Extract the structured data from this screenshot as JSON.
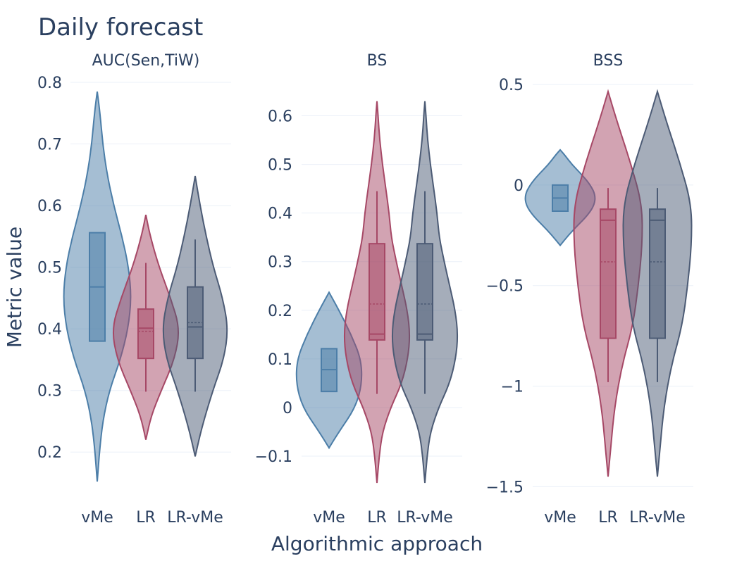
{
  "title": "Daily forecast",
  "xlabel": "Algorithmic approach",
  "ylabel": "Metric value",
  "colors": {
    "vMe": "#4c7ea8",
    "LR": "#a64866",
    "LR-vMe": "#4c5b75"
  },
  "chart_data": [
    {
      "type": "violin",
      "subtitle": "AUC(Sen,TiW)",
      "categories": [
        "vMe",
        "LR",
        "LR-vMe"
      ],
      "ylim": [
        0.15,
        0.8
      ],
      "yticks": [
        0.2,
        0.3,
        0.4,
        0.5,
        0.6,
        0.7,
        0.8
      ],
      "ytick_labels": [
        "0.2",
        "0.3",
        "0.4",
        "0.5",
        "0.6",
        "0.7",
        "0.8"
      ],
      "series": [
        {
          "name": "vMe",
          "min": 0.152,
          "max": 0.785,
          "q1": 0.38,
          "median": 0.468,
          "q3": 0.556,
          "mean": null,
          "wlo": null,
          "whi": null,
          "density": [
            [
              0.152,
              0.0
            ],
            [
              0.2,
              0.04
            ],
            [
              0.25,
              0.1
            ],
            [
              0.3,
              0.22
            ],
            [
              0.35,
              0.42
            ],
            [
              0.4,
              0.56
            ],
            [
              0.45,
              0.62
            ],
            [
              0.5,
              0.57
            ],
            [
              0.55,
              0.45
            ],
            [
              0.6,
              0.3
            ],
            [
              0.65,
              0.18
            ],
            [
              0.7,
              0.1
            ],
            [
              0.75,
              0.05
            ],
            [
              0.785,
              0.0
            ]
          ]
        },
        {
          "name": "LR",
          "min": 0.22,
          "max": 0.585,
          "q1": 0.352,
          "median": 0.401,
          "q3": 0.432,
          "mean": 0.396,
          "wlo": 0.298,
          "whi": 0.507,
          "density": [
            [
              0.22,
              0.0
            ],
            [
              0.26,
              0.1
            ],
            [
              0.3,
              0.28
            ],
            [
              0.35,
              0.52
            ],
            [
              0.4,
              0.62
            ],
            [
              0.45,
              0.45
            ],
            [
              0.5,
              0.24
            ],
            [
              0.55,
              0.08
            ],
            [
              0.585,
              0.0
            ]
          ]
        },
        {
          "name": "LR-vMe",
          "min": 0.193,
          "max": 0.648,
          "q1": 0.352,
          "median": 0.403,
          "q3": 0.468,
          "mean": 0.41,
          "wlo": 0.298,
          "whi": 0.545,
          "density": [
            [
              0.193,
              0.0
            ],
            [
              0.24,
              0.12
            ],
            [
              0.3,
              0.32
            ],
            [
              0.35,
              0.52
            ],
            [
              0.4,
              0.6
            ],
            [
              0.45,
              0.5
            ],
            [
              0.5,
              0.33
            ],
            [
              0.55,
              0.2
            ],
            [
              0.6,
              0.09
            ],
            [
              0.648,
              0.0
            ]
          ]
        }
      ]
    },
    {
      "type": "violin",
      "subtitle": "BS",
      "categories": [
        "vMe",
        "LR",
        "LR-vMe"
      ],
      "ylim": [
        -0.155,
        0.65
      ],
      "yticks": [
        -0.1,
        0,
        0.1,
        0.2,
        0.3,
        0.4,
        0.5,
        0.6
      ],
      "ytick_labels": [
        "−0.1",
        "0",
        "0.1",
        "0.2",
        "0.3",
        "0.4",
        "0.5",
        "0.6"
      ],
      "series": [
        {
          "name": "vMe",
          "min": -0.083,
          "max": 0.237,
          "q1": 0.033,
          "median": 0.078,
          "q3": 0.121,
          "mean": null,
          "wlo": null,
          "whi": null,
          "density": [
            [
              -0.083,
              0.0
            ],
            [
              -0.05,
              0.18
            ],
            [
              0.0,
              0.48
            ],
            [
              0.05,
              0.6
            ],
            [
              0.1,
              0.58
            ],
            [
              0.15,
              0.4
            ],
            [
              0.2,
              0.18
            ],
            [
              0.237,
              0.0
            ]
          ]
        },
        {
          "name": "LR",
          "min": -0.155,
          "max": 0.63,
          "q1": 0.139,
          "median": 0.151,
          "q3": 0.337,
          "mean": 0.213,
          "wlo": 0.028,
          "whi": 0.445,
          "density": [
            [
              -0.155,
              0.0
            ],
            [
              -0.1,
              0.04
            ],
            [
              -0.05,
              0.1
            ],
            [
              0.0,
              0.25
            ],
            [
              0.05,
              0.45
            ],
            [
              0.1,
              0.56
            ],
            [
              0.15,
              0.6
            ],
            [
              0.2,
              0.55
            ],
            [
              0.25,
              0.45
            ],
            [
              0.3,
              0.35
            ],
            [
              0.35,
              0.26
            ],
            [
              0.4,
              0.22
            ],
            [
              0.45,
              0.16
            ],
            [
              0.5,
              0.1
            ],
            [
              0.55,
              0.05
            ],
            [
              0.6,
              0.02
            ],
            [
              0.63,
              0.0
            ]
          ]
        },
        {
          "name": "LR-vMe",
          "min": -0.155,
          "max": 0.63,
          "q1": 0.139,
          "median": 0.151,
          "q3": 0.337,
          "mean": 0.213,
          "wlo": 0.028,
          "whi": 0.445,
          "density": [
            [
              -0.155,
              0.0
            ],
            [
              -0.1,
              0.04
            ],
            [
              -0.05,
              0.1
            ],
            [
              0.0,
              0.25
            ],
            [
              0.05,
              0.45
            ],
            [
              0.1,
              0.56
            ],
            [
              0.15,
              0.6
            ],
            [
              0.2,
              0.55
            ],
            [
              0.25,
              0.45
            ],
            [
              0.3,
              0.35
            ],
            [
              0.35,
              0.26
            ],
            [
              0.4,
              0.22
            ],
            [
              0.45,
              0.16
            ],
            [
              0.5,
              0.1
            ],
            [
              0.55,
              0.05
            ],
            [
              0.6,
              0.02
            ],
            [
              0.63,
              0.0
            ]
          ]
        }
      ]
    },
    {
      "type": "violin",
      "subtitle": "BSS",
      "categories": [
        "vMe",
        "LR",
        "LR-vMe"
      ],
      "ylim": [
        -1.53,
        0.5
      ],
      "yticks": [
        -1.5,
        -1,
        -0.5,
        0,
        0.5
      ],
      "ytick_labels": [
        "−1.5",
        "−1",
        "−0.5",
        "0",
        "0.5"
      ],
      "series": [
        {
          "name": "vMe",
          "min": -0.3,
          "max": 0.175,
          "q1": -0.13,
          "median": -0.065,
          "q3": 0.0,
          "mean": null,
          "wlo": null,
          "whi": null,
          "density": [
            [
              -0.3,
              0.0
            ],
            [
              -0.25,
              0.15
            ],
            [
              -0.2,
              0.32
            ],
            [
              -0.15,
              0.5
            ],
            [
              -0.1,
              0.62
            ],
            [
              -0.05,
              0.64
            ],
            [
              0.0,
              0.55
            ],
            [
              0.05,
              0.4
            ],
            [
              0.1,
              0.22
            ],
            [
              0.15,
              0.08
            ],
            [
              0.175,
              0.0
            ]
          ]
        },
        {
          "name": "LR",
          "min": -1.45,
          "max": 0.465,
          "q1": -0.762,
          "median": -0.175,
          "q3": -0.12,
          "mean": -0.382,
          "wlo": -0.98,
          "whi": -0.015,
          "density": [
            [
              -1.45,
              0.0
            ],
            [
              -1.3,
              0.05
            ],
            [
              -1.1,
              0.12
            ],
            [
              -0.9,
              0.25
            ],
            [
              -0.7,
              0.45
            ],
            [
              -0.5,
              0.55
            ],
            [
              -0.3,
              0.62
            ],
            [
              -0.1,
              0.62
            ],
            [
              0.1,
              0.42
            ],
            [
              0.3,
              0.18
            ],
            [
              0.465,
              0.0
            ]
          ]
        },
        {
          "name": "LR-vMe",
          "min": -1.45,
          "max": 0.465,
          "q1": -0.762,
          "median": -0.175,
          "q3": -0.12,
          "mean": -0.382,
          "wlo": -0.98,
          "whi": -0.015,
          "density": [
            [
              -1.45,
              0.0
            ],
            [
              -1.3,
              0.05
            ],
            [
              -1.1,
              0.12
            ],
            [
              -0.9,
              0.25
            ],
            [
              -0.7,
              0.45
            ],
            [
              -0.5,
              0.55
            ],
            [
              -0.3,
              0.62
            ],
            [
              -0.1,
              0.62
            ],
            [
              0.1,
              0.42
            ],
            [
              0.3,
              0.18
            ],
            [
              0.465,
              0.0
            ]
          ]
        }
      ]
    }
  ]
}
